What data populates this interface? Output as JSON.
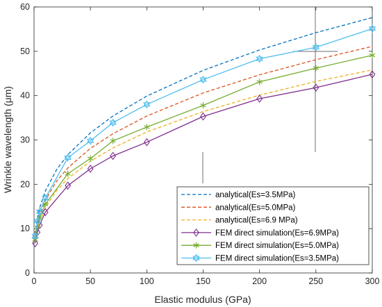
{
  "chart_data": {
    "type": "line",
    "xlabel": "Elastic modulus (GPa)",
    "ylabel": "Wrinkle wavelength (μm)",
    "xlim": [
      0,
      300
    ],
    "ylim": [
      0,
      60
    ],
    "xticks": [
      0,
      50,
      100,
      150,
      200,
      250,
      300
    ],
    "yticks": [
      0,
      10,
      20,
      30,
      40,
      50,
      60
    ],
    "grid": false,
    "legend_position": "bottom-right",
    "series": [
      {
        "name": "analytical(Es=3.5MPa)",
        "style": "dashed",
        "color": "#0072BD",
        "x": [
          1,
          3,
          5,
          10,
          20,
          30,
          50,
          70,
          100,
          150,
          200,
          250,
          300
        ],
        "y": [
          8.6,
          12.4,
          14.7,
          18.5,
          23.3,
          26.7,
          31.6,
          35.4,
          39.9,
          45.7,
          50.3,
          54.2,
          57.6
        ]
      },
      {
        "name": "analytical(Es=5.0MPa)",
        "style": "dashed",
        "color": "#D95319",
        "x": [
          1,
          3,
          5,
          10,
          20,
          30,
          50,
          70,
          100,
          150,
          200,
          250,
          300
        ],
        "y": [
          7.6,
          11.0,
          13.1,
          16.4,
          20.7,
          23.7,
          28.1,
          31.4,
          35.4,
          40.6,
          44.7,
          48.1,
          51.1
        ]
      },
      {
        "name": "analytical(Es=6.9 MPa)",
        "style": "dashed",
        "color": "#EDB120",
        "x": [
          1,
          3,
          5,
          10,
          20,
          30,
          50,
          70,
          100,
          150,
          200,
          250,
          300
        ],
        "y": [
          6.8,
          9.9,
          11.7,
          14.7,
          18.6,
          21.3,
          25.2,
          28.2,
          31.8,
          36.4,
          40.1,
          43.2,
          45.8
        ]
      },
      {
        "name": "FEM direct simulation(Es=6.9MPa)",
        "style": "solid",
        "marker": "diamond",
        "color": "#7E2F8E",
        "x": [
          1,
          3,
          5,
          10,
          30,
          50,
          70,
          100,
          150,
          200,
          250,
          300
        ],
        "y": [
          6.7,
          9.2,
          10.8,
          13.7,
          19.7,
          23.5,
          26.4,
          29.5,
          35.3,
          39.3,
          41.8,
          44.8
        ]
      },
      {
        "name": "FEM direct simulation(Es=5.0MPa)",
        "style": "solid",
        "marker": "asterisk",
        "color": "#77AC30",
        "x": [
          1,
          3,
          5,
          10,
          30,
          50,
          70,
          100,
          150,
          200,
          250,
          300
        ],
        "y": [
          7.5,
          10.3,
          12.4,
          15.5,
          22.4,
          25.8,
          29.8,
          32.9,
          37.8,
          43.1,
          46.2,
          49.1
        ]
      },
      {
        "name": "FEM direct simulation(Es=3.5MPa)",
        "style": "solid",
        "marker": "hexagram",
        "color": "#4DBEEE",
        "x": [
          1,
          3,
          5,
          10,
          30,
          50,
          70,
          100,
          150,
          200,
          250,
          300
        ],
        "y": [
          8.3,
          11.7,
          13.8,
          16.9,
          26.0,
          29.8,
          33.9,
          38.0,
          43.6,
          48.3,
          50.9,
          55.1
        ]
      }
    ]
  }
}
